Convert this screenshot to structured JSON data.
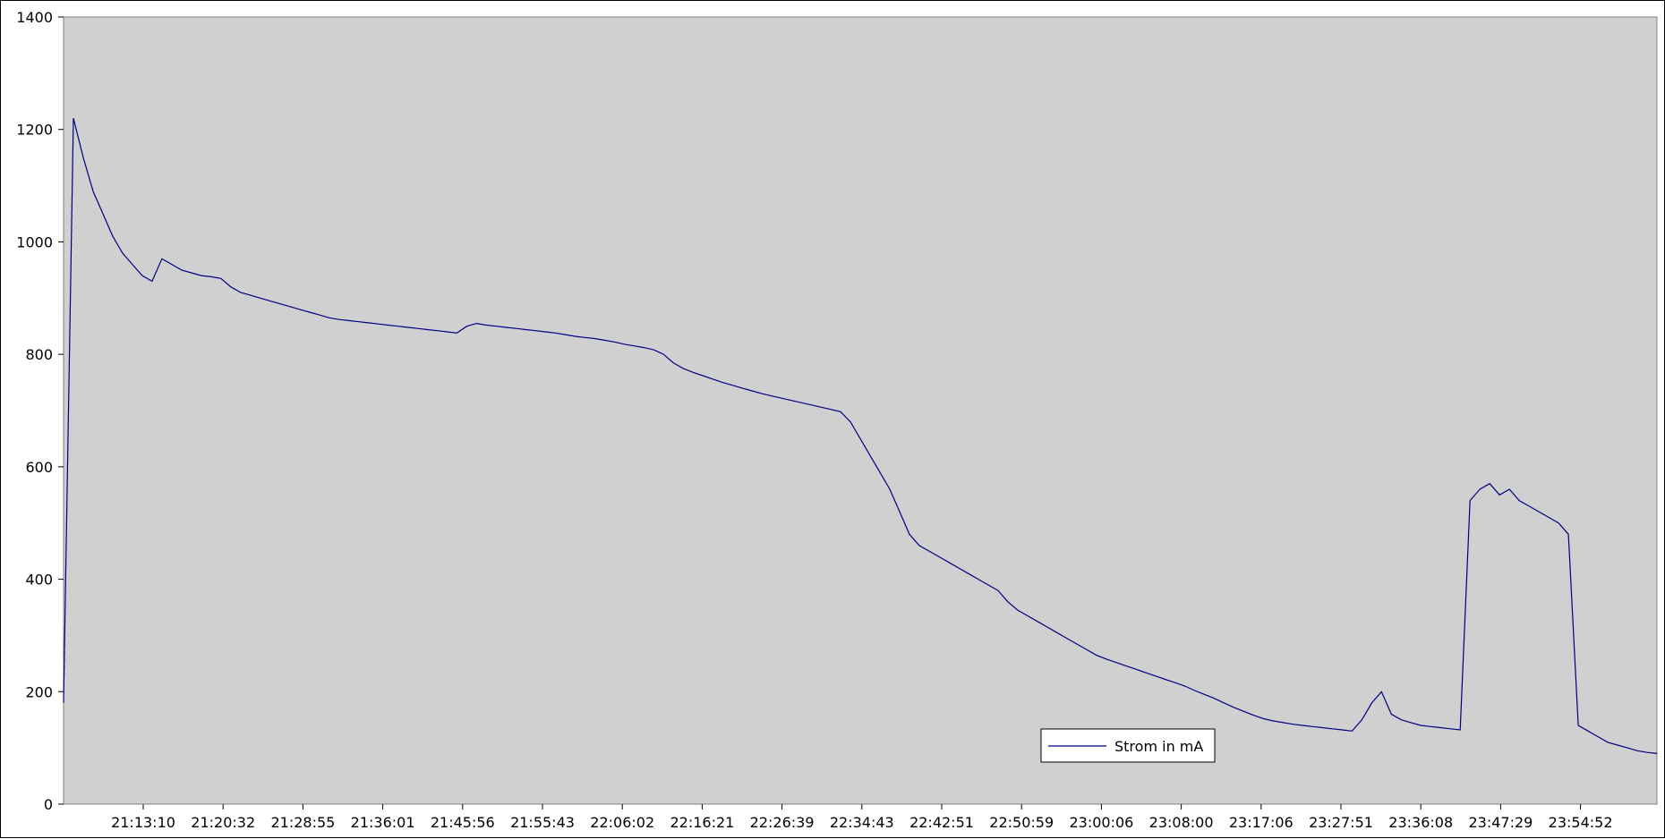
{
  "chart_data": {
    "type": "line",
    "title": "",
    "xlabel": "",
    "ylabel": "",
    "ylim": [
      0,
      1400
    ],
    "y_ticks": [
      0,
      200,
      400,
      600,
      800,
      1000,
      1200,
      1400
    ],
    "y_tick_labels": [
      "0",
      "200",
      "400",
      "600",
      "800",
      "1000",
      "1200",
      "1400"
    ],
    "x_tick_labels": [
      "21:13:10",
      "21:20:32",
      "21:28:55",
      "21:36:01",
      "21:45:56",
      "21:55:43",
      "22:06:02",
      "22:16:21",
      "22:26:39",
      "22:34:43",
      "22:42:51",
      "22:50:59",
      "23:00:06",
      "23:08:00",
      "23:17:06",
      "23:27:51",
      "23:36:08",
      "23:47:29",
      "23:54:52"
    ],
    "grid": false,
    "legend": {
      "position": "bottom-right",
      "entries": [
        "Strom in mA"
      ]
    },
    "colors": {
      "plot_background": "#d0d0d0",
      "series": "#000080"
    },
    "series": [
      {
        "name": "Strom in mA",
        "values": [
          180,
          1220,
          1150,
          1090,
          1050,
          1010,
          980,
          960,
          940,
          930,
          970,
          960,
          950,
          945,
          940,
          938,
          935,
          920,
          910,
          905,
          900,
          895,
          890,
          885,
          880,
          875,
          870,
          865,
          862,
          860,
          858,
          856,
          854,
          852,
          850,
          848,
          846,
          844,
          842,
          840,
          838,
          850,
          855,
          852,
          850,
          848,
          846,
          844,
          842,
          840,
          838,
          835,
          832,
          830,
          828,
          825,
          822,
          818,
          815,
          812,
          808,
          800,
          785,
          775,
          768,
          762,
          756,
          750,
          745,
          740,
          735,
          730,
          726,
          722,
          718,
          714,
          710,
          706,
          702,
          698,
          680,
          650,
          620,
          590,
          560,
          520,
          480,
          460,
          450,
          440,
          430,
          420,
          410,
          400,
          390,
          380,
          360,
          345,
          335,
          325,
          315,
          305,
          295,
          285,
          275,
          265,
          258,
          252,
          246,
          240,
          234,
          228,
          222,
          216,
          210,
          202,
          195,
          188,
          180,
          172,
          165,
          158,
          152,
          148,
          145,
          142,
          140,
          138,
          136,
          134,
          132,
          130,
          150,
          180,
          200,
          160,
          150,
          145,
          140,
          138,
          136,
          134,
          132,
          540,
          560,
          570,
          550,
          560,
          540,
          530,
          520,
          510,
          500,
          480,
          140,
          130,
          120,
          110,
          105,
          100,
          95,
          92,
          90
        ]
      }
    ]
  }
}
